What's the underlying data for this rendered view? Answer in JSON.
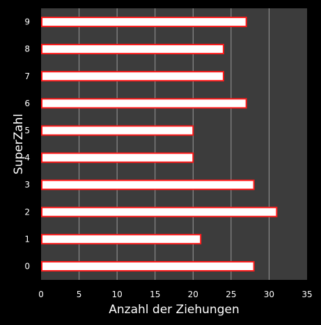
{
  "chart_data": {
    "type": "bar",
    "orientation": "horizontal",
    "categories": [
      "0",
      "1",
      "2",
      "3",
      "4",
      "5",
      "6",
      "7",
      "8",
      "9"
    ],
    "values": [
      28,
      21,
      31,
      28,
      20,
      20,
      27,
      24,
      24,
      27
    ],
    "xlabel": "Anzahl der Ziehungen",
    "ylabel": "SuperZahl",
    "xlim": [
      0,
      35
    ],
    "xticks": [
      "0",
      "5",
      "10",
      "15",
      "20",
      "25",
      "30",
      "35"
    ],
    "grid": "vertical",
    "legend": "none",
    "colors": {
      "background": "#000000",
      "plot_area": "#3c3c3c",
      "bar_fill": "#ffffff",
      "bar_border": "#ff1a1a",
      "gridline": "#9a9a9a",
      "text": "#ffffff"
    }
  }
}
